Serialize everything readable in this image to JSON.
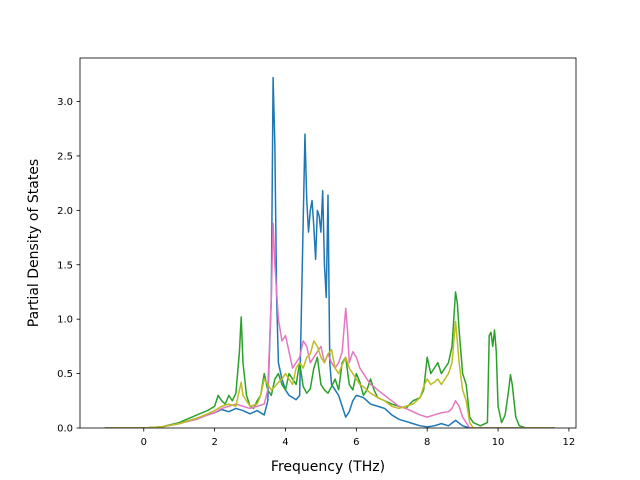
{
  "chart_data": {
    "type": "line",
    "title": "",
    "xlabel": "Frequency (THz)",
    "ylabel": "Partial Density of States",
    "xlim": [
      -1.8,
      12.2
    ],
    "ylim": [
      0,
      3.4
    ],
    "x_ticks": [
      0,
      2,
      4,
      6,
      8,
      10,
      12
    ],
    "y_ticks": [
      0.0,
      0.5,
      1.0,
      1.5,
      2.0,
      2.5,
      3.0
    ],
    "x_tick_labels": [
      "0",
      "2",
      "4",
      "6",
      "8",
      "10",
      "12"
    ],
    "y_tick_labels": [
      "0.0",
      "0.5",
      "1.0",
      "1.5",
      "2.0",
      "2.5",
      "3.0"
    ],
    "grid": false,
    "legend": "none",
    "series": [
      {
        "color": "#1f77b4",
        "points": [
          [
            -1.1,
            0
          ],
          [
            0,
            0
          ],
          [
            0.5,
            0.01
          ],
          [
            1,
            0.04
          ],
          [
            1.5,
            0.09
          ],
          [
            1.8,
            0.12
          ],
          [
            2.0,
            0.14
          ],
          [
            2.2,
            0.17
          ],
          [
            2.4,
            0.15
          ],
          [
            2.6,
            0.18
          ],
          [
            2.8,
            0.16
          ],
          [
            3.0,
            0.13
          ],
          [
            3.2,
            0.16
          ],
          [
            3.4,
            0.12
          ],
          [
            3.5,
            0.25
          ],
          [
            3.6,
            1.2
          ],
          [
            3.65,
            3.22
          ],
          [
            3.7,
            2.6
          ],
          [
            3.75,
            1.2
          ],
          [
            3.8,
            0.6
          ],
          [
            3.9,
            0.45
          ],
          [
            4.0,
            0.35
          ],
          [
            4.1,
            0.3
          ],
          [
            4.2,
            0.28
          ],
          [
            4.3,
            0.26
          ],
          [
            4.4,
            0.3
          ],
          [
            4.5,
            1.9
          ],
          [
            4.55,
            2.7
          ],
          [
            4.6,
            2.1
          ],
          [
            4.65,
            1.8
          ],
          [
            4.7,
            2.0
          ],
          [
            4.75,
            2.09
          ],
          [
            4.8,
            1.85
          ],
          [
            4.85,
            1.55
          ],
          [
            4.9,
            2.0
          ],
          [
            4.95,
            1.95
          ],
          [
            5.0,
            1.8
          ],
          [
            5.05,
            2.18
          ],
          [
            5.1,
            1.5
          ],
          [
            5.15,
            1.2
          ],
          [
            5.2,
            2.14
          ],
          [
            5.25,
            0.6
          ],
          [
            5.3,
            0.4
          ],
          [
            5.4,
            0.35
          ],
          [
            5.5,
            0.3
          ],
          [
            5.6,
            0.2
          ],
          [
            5.7,
            0.1
          ],
          [
            5.8,
            0.15
          ],
          [
            5.9,
            0.25
          ],
          [
            6.0,
            0.3
          ],
          [
            6.2,
            0.28
          ],
          [
            6.4,
            0.22
          ],
          [
            6.6,
            0.2
          ],
          [
            6.8,
            0.18
          ],
          [
            7.0,
            0.12
          ],
          [
            7.2,
            0.08
          ],
          [
            7.4,
            0.06
          ],
          [
            7.6,
            0.04
          ],
          [
            7.8,
            0.02
          ],
          [
            8.0,
            0.01
          ],
          [
            8.2,
            0.02
          ],
          [
            8.4,
            0.04
          ],
          [
            8.6,
            0.02
          ],
          [
            8.8,
            0.07
          ],
          [
            9.0,
            0.02
          ],
          [
            9.2,
            0
          ],
          [
            11.6,
            0
          ]
        ]
      },
      {
        "color": "#2ca02c",
        "points": [
          [
            -1.1,
            0
          ],
          [
            0,
            0
          ],
          [
            0.5,
            0.01
          ],
          [
            1,
            0.05
          ],
          [
            1.5,
            0.12
          ],
          [
            1.8,
            0.16
          ],
          [
            2.0,
            0.2
          ],
          [
            2.1,
            0.3
          ],
          [
            2.2,
            0.25
          ],
          [
            2.3,
            0.22
          ],
          [
            2.4,
            0.3
          ],
          [
            2.5,
            0.25
          ],
          [
            2.6,
            0.32
          ],
          [
            2.7,
            0.7
          ],
          [
            2.75,
            1.02
          ],
          [
            2.8,
            0.6
          ],
          [
            2.9,
            0.3
          ],
          [
            3.0,
            0.2
          ],
          [
            3.1,
            0.18
          ],
          [
            3.2,
            0.25
          ],
          [
            3.3,
            0.3
          ],
          [
            3.4,
            0.5
          ],
          [
            3.5,
            0.35
          ],
          [
            3.6,
            0.3
          ],
          [
            3.7,
            0.45
          ],
          [
            3.8,
            0.5
          ],
          [
            3.9,
            0.4
          ],
          [
            4.0,
            0.35
          ],
          [
            4.1,
            0.5
          ],
          [
            4.2,
            0.45
          ],
          [
            4.3,
            0.4
          ],
          [
            4.4,
            0.6
          ],
          [
            4.5,
            0.38
          ],
          [
            4.6,
            0.32
          ],
          [
            4.7,
            0.36
          ],
          [
            4.8,
            0.55
          ],
          [
            4.9,
            0.65
          ],
          [
            5.0,
            0.4
          ],
          [
            5.1,
            0.35
          ],
          [
            5.2,
            0.32
          ],
          [
            5.3,
            0.38
          ],
          [
            5.4,
            0.45
          ],
          [
            5.5,
            0.35
          ],
          [
            5.6,
            0.6
          ],
          [
            5.7,
            0.65
          ],
          [
            5.8,
            0.4
          ],
          [
            5.9,
            0.35
          ],
          [
            6.0,
            0.5
          ],
          [
            6.1,
            0.42
          ],
          [
            6.2,
            0.3
          ],
          [
            6.3,
            0.35
          ],
          [
            6.4,
            0.45
          ],
          [
            6.5,
            0.35
          ],
          [
            6.6,
            0.28
          ],
          [
            6.8,
            0.25
          ],
          [
            7.0,
            0.22
          ],
          [
            7.2,
            0.2
          ],
          [
            7.4,
            0.18
          ],
          [
            7.6,
            0.25
          ],
          [
            7.8,
            0.28
          ],
          [
            7.9,
            0.35
          ],
          [
            8.0,
            0.65
          ],
          [
            8.1,
            0.5
          ],
          [
            8.2,
            0.55
          ],
          [
            8.3,
            0.6
          ],
          [
            8.4,
            0.5
          ],
          [
            8.5,
            0.55
          ],
          [
            8.6,
            0.6
          ],
          [
            8.7,
            0.75
          ],
          [
            8.8,
            1.25
          ],
          [
            8.85,
            1.15
          ],
          [
            8.9,
            0.9
          ],
          [
            9.0,
            0.5
          ],
          [
            9.1,
            0.4
          ],
          [
            9.2,
            0.1
          ],
          [
            9.3,
            0.05
          ],
          [
            9.5,
            0.02
          ],
          [
            9.7,
            0.05
          ],
          [
            9.75,
            0.85
          ],
          [
            9.8,
            0.88
          ],
          [
            9.85,
            0.75
          ],
          [
            9.9,
            0.9
          ],
          [
            9.95,
            0.7
          ],
          [
            10.0,
            0.2
          ],
          [
            10.1,
            0.05
          ],
          [
            10.2,
            0.12
          ],
          [
            10.3,
            0.35
          ],
          [
            10.35,
            0.49
          ],
          [
            10.4,
            0.4
          ],
          [
            10.5,
            0.1
          ],
          [
            10.6,
            0.02
          ],
          [
            10.8,
            0
          ],
          [
            11.6,
            0
          ]
        ]
      },
      {
        "color": "#e377c2",
        "points": [
          [
            -1.1,
            0
          ],
          [
            0,
            0
          ],
          [
            0.5,
            0.01
          ],
          [
            1,
            0.04
          ],
          [
            1.5,
            0.08
          ],
          [
            1.8,
            0.12
          ],
          [
            2.0,
            0.14
          ],
          [
            2.2,
            0.18
          ],
          [
            2.4,
            0.2
          ],
          [
            2.6,
            0.22
          ],
          [
            2.8,
            0.2
          ],
          [
            3.0,
            0.18
          ],
          [
            3.2,
            0.2
          ],
          [
            3.4,
            0.22
          ],
          [
            3.5,
            0.35
          ],
          [
            3.6,
            1.2
          ],
          [
            3.65,
            1.88
          ],
          [
            3.7,
            1.5
          ],
          [
            3.8,
            1.0
          ],
          [
            3.9,
            0.8
          ],
          [
            4.0,
            0.85
          ],
          [
            4.1,
            0.7
          ],
          [
            4.2,
            0.55
          ],
          [
            4.3,
            0.6
          ],
          [
            4.4,
            0.65
          ],
          [
            4.5,
            0.8
          ],
          [
            4.6,
            0.75
          ],
          [
            4.7,
            0.6
          ],
          [
            4.8,
            0.65
          ],
          [
            4.9,
            0.7
          ],
          [
            5.0,
            0.75
          ],
          [
            5.1,
            0.6
          ],
          [
            5.2,
            0.68
          ],
          [
            5.3,
            0.6
          ],
          [
            5.4,
            0.55
          ],
          [
            5.5,
            0.6
          ],
          [
            5.6,
            0.7
          ],
          [
            5.7,
            1.1
          ],
          [
            5.75,
            0.9
          ],
          [
            5.8,
            0.6
          ],
          [
            5.9,
            0.7
          ],
          [
            6.0,
            0.65
          ],
          [
            6.1,
            0.55
          ],
          [
            6.2,
            0.5
          ],
          [
            6.3,
            0.45
          ],
          [
            6.4,
            0.4
          ],
          [
            6.5,
            0.38
          ],
          [
            6.6,
            0.35
          ],
          [
            6.8,
            0.3
          ],
          [
            7.0,
            0.25
          ],
          [
            7.2,
            0.2
          ],
          [
            7.4,
            0.18
          ],
          [
            7.6,
            0.15
          ],
          [
            7.8,
            0.12
          ],
          [
            8.0,
            0.1
          ],
          [
            8.2,
            0.12
          ],
          [
            8.4,
            0.14
          ],
          [
            8.6,
            0.15
          ],
          [
            8.7,
            0.18
          ],
          [
            8.8,
            0.25
          ],
          [
            8.9,
            0.2
          ],
          [
            9.0,
            0.1
          ],
          [
            9.1,
            0.05
          ],
          [
            9.2,
            0
          ],
          [
            11.6,
            0
          ]
        ]
      },
      {
        "color": "#bcbd22",
        "points": [
          [
            -1.1,
            0
          ],
          [
            0,
            0
          ],
          [
            0.5,
            0.01
          ],
          [
            1,
            0.04
          ],
          [
            1.5,
            0.09
          ],
          [
            1.8,
            0.13
          ],
          [
            2.0,
            0.16
          ],
          [
            2.2,
            0.2
          ],
          [
            2.4,
            0.22
          ],
          [
            2.6,
            0.2
          ],
          [
            2.7,
            0.35
          ],
          [
            2.75,
            0.42
          ],
          [
            2.8,
            0.3
          ],
          [
            3.0,
            0.2
          ],
          [
            3.2,
            0.22
          ],
          [
            3.3,
            0.3
          ],
          [
            3.4,
            0.45
          ],
          [
            3.5,
            0.4
          ],
          [
            3.6,
            0.35
          ],
          [
            3.7,
            0.38
          ],
          [
            3.8,
            0.42
          ],
          [
            3.9,
            0.45
          ],
          [
            4.0,
            0.5
          ],
          [
            4.1,
            0.45
          ],
          [
            4.2,
            0.4
          ],
          [
            4.3,
            0.55
          ],
          [
            4.4,
            0.6
          ],
          [
            4.5,
            0.55
          ],
          [
            4.6,
            0.65
          ],
          [
            4.7,
            0.68
          ],
          [
            4.8,
            0.8
          ],
          [
            4.9,
            0.75
          ],
          [
            5.0,
            0.65
          ],
          [
            5.1,
            0.6
          ],
          [
            5.2,
            0.68
          ],
          [
            5.3,
            0.72
          ],
          [
            5.4,
            0.55
          ],
          [
            5.5,
            0.5
          ],
          [
            5.6,
            0.58
          ],
          [
            5.7,
            0.65
          ],
          [
            5.8,
            0.55
          ],
          [
            5.9,
            0.5
          ],
          [
            6.0,
            0.45
          ],
          [
            6.1,
            0.4
          ],
          [
            6.2,
            0.38
          ],
          [
            6.3,
            0.35
          ],
          [
            6.4,
            0.32
          ],
          [
            6.5,
            0.3
          ],
          [
            6.6,
            0.28
          ],
          [
            6.8,
            0.25
          ],
          [
            7.0,
            0.2
          ],
          [
            7.2,
            0.18
          ],
          [
            7.4,
            0.2
          ],
          [
            7.6,
            0.22
          ],
          [
            7.8,
            0.28
          ],
          [
            7.9,
            0.38
          ],
          [
            8.0,
            0.45
          ],
          [
            8.1,
            0.4
          ],
          [
            8.2,
            0.42
          ],
          [
            8.3,
            0.45
          ],
          [
            8.4,
            0.4
          ],
          [
            8.5,
            0.45
          ],
          [
            8.6,
            0.5
          ],
          [
            8.7,
            0.6
          ],
          [
            8.8,
            0.98
          ],
          [
            8.85,
            0.8
          ],
          [
            8.9,
            0.6
          ],
          [
            9.0,
            0.35
          ],
          [
            9.1,
            0.25
          ],
          [
            9.2,
            0.05
          ],
          [
            9.3,
            0
          ],
          [
            11.6,
            0
          ]
        ]
      }
    ]
  }
}
